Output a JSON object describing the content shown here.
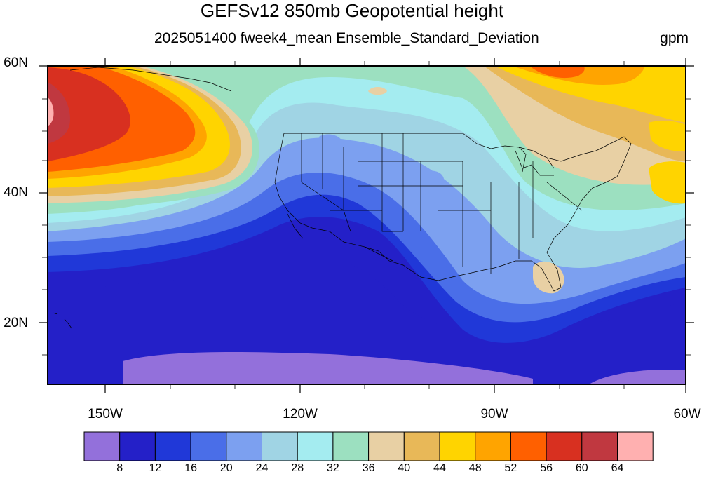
{
  "title": "GEFSv12 850mb Geopotential height",
  "subtitle": "2025051400 fweek4_mean Ensemble_Standard_Deviation",
  "units": "gpm",
  "lat_labels": [
    "60N",
    "40N",
    "20N"
  ],
  "lon_labels": [
    "150W",
    "120W",
    "90W",
    "60W"
  ],
  "colorbar": {
    "labels": [
      "8",
      "12",
      "16",
      "20",
      "24",
      "28",
      "32",
      "36",
      "40",
      "44",
      "48",
      "52",
      "56",
      "60",
      "64"
    ],
    "colors": [
      "#9370db",
      "#2420c8",
      "#2038d8",
      "#4a6ee8",
      "#7ca0f0",
      "#a0d4e4",
      "#a4ecf0",
      "#9ce0c0",
      "#e8d0a4",
      "#e8b858",
      "#ffd400",
      "#ffa400",
      "#ff6000",
      "#d83020",
      "#c03840",
      "#ffb0b0"
    ]
  },
  "map_extent": {
    "lon": [
      -159,
      -60
    ],
    "lat": [
      10,
      60
    ]
  },
  "colors": {
    "land_outline": "#000000",
    "background": "#ffffff"
  }
}
